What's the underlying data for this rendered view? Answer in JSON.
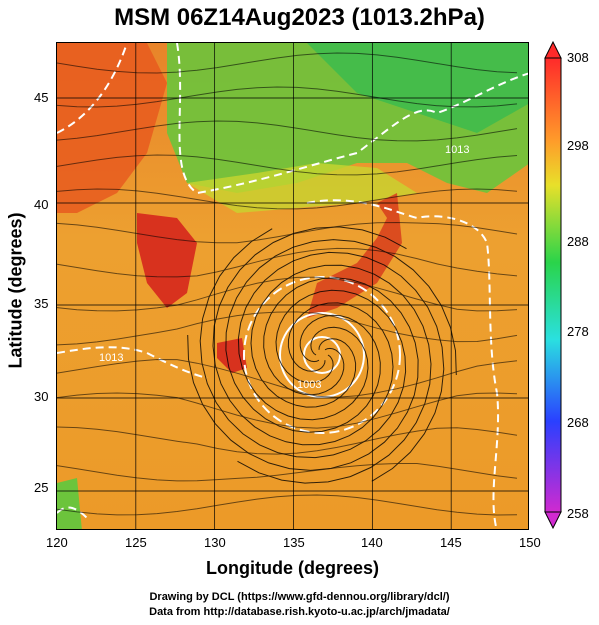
{
  "title": "MSM 06Z14Aug2023 (1013.2hPa)",
  "axes": {
    "xlabel": "Longitude (degrees)",
    "ylabel": "Latitude  (degrees)",
    "x_ticks": [
      "120",
      "125",
      "130",
      "135",
      "140",
      "145",
      "150"
    ],
    "y_ticks": [
      "25",
      "30",
      "35",
      "40",
      "45"
    ]
  },
  "colorbar": {
    "labels": [
      "308",
      "298",
      "288",
      "278",
      "268",
      "258"
    ],
    "colors": [
      "#ff2a2a",
      "#ff9a2a",
      "#e8e02a",
      "#2ad44a",
      "#2ae0e0",
      "#2a40ff",
      "#d02ad0"
    ]
  },
  "map": {
    "isobar_labels": [
      "1013",
      "1013",
      "1003"
    ],
    "colors": {
      "hot": "#d8321e",
      "warm": "#f0a01e",
      "sea": "#eb9c27",
      "green": "#4ec14e",
      "yellow": "#d8d830"
    }
  },
  "credits": {
    "line1": "Drawing by DCL (https://www.gfd-dennou.org/library/dcl/)",
    "line2": "Data from http://database.rish.kyoto-u.ac.jp/arch/jmadata/"
  }
}
